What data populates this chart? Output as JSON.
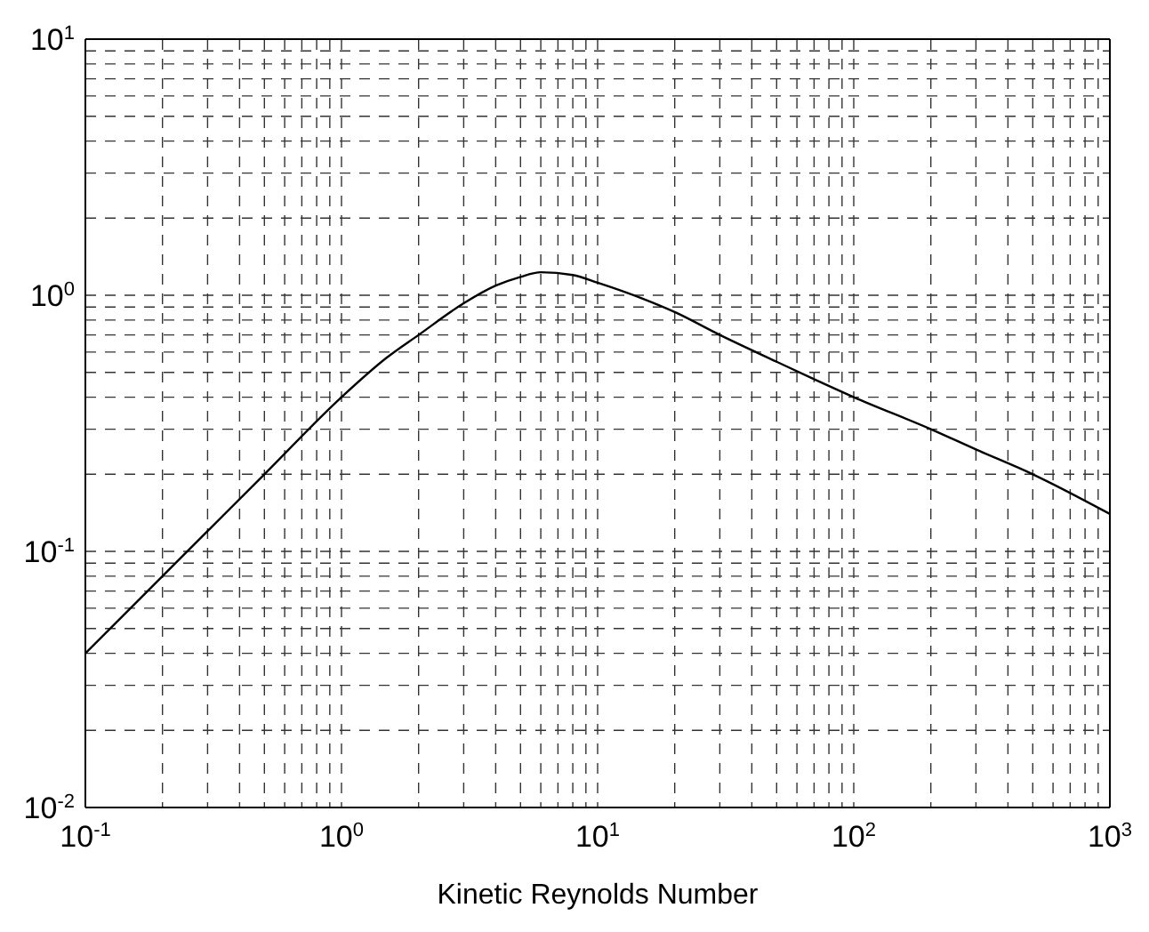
{
  "chart_data": {
    "type": "line",
    "xlabel": "Kinetic Reynolds Number",
    "log": "xy",
    "grid": true,
    "x": [
      0.1,
      0.2,
      0.3,
      0.5,
      1,
      1.5,
      2,
      3,
      4,
      5,
      6,
      8,
      10,
      15,
      20,
      30,
      50,
      70,
      100,
      200,
      300,
      500,
      1000
    ],
    "series": [
      {
        "color": "#000000",
        "values": [
          0.04,
          0.08,
          0.12,
          0.2,
          0.4,
          0.57,
          0.7,
          0.93,
          1.09,
          1.18,
          1.23,
          1.2,
          1.12,
          0.97,
          0.86,
          0.7,
          0.55,
          0.47,
          0.4,
          0.3,
          0.25,
          0.2,
          0.14
        ]
      }
    ],
    "xlim": [
      0.1,
      1000
    ],
    "ylim": [
      0.01,
      10
    ],
    "xticks": [
      {
        "value": 0.1,
        "label": "10$^{-1}$"
      },
      {
        "value": 0.2,
        "label": null
      },
      {
        "value": 0.3,
        "label": null
      },
      {
        "value": 0.4,
        "label": null
      },
      {
        "value": 0.5,
        "label": null
      },
      {
        "value": 0.6,
        "label": null
      },
      {
        "value": 0.7,
        "label": null
      },
      {
        "value": 0.8,
        "label": null
      },
      {
        "value": 0.9,
        "label": null
      },
      {
        "value": 1,
        "label": "10$^{0}$"
      },
      {
        "value": 2,
        "label": null
      },
      {
        "value": 3,
        "label": null
      },
      {
        "value": 4,
        "label": null
      },
      {
        "value": 5,
        "label": null
      },
      {
        "value": 6,
        "label": null
      },
      {
        "value": 7,
        "label": null
      },
      {
        "value": 8,
        "label": null
      },
      {
        "value": 9,
        "label": null
      },
      {
        "value": 10,
        "label": "10$^{1}$"
      },
      {
        "value": 20,
        "label": null
      },
      {
        "value": 30,
        "label": null
      },
      {
        "value": 40,
        "label": null
      },
      {
        "value": 50,
        "label": null
      },
      {
        "value": 60,
        "label": null
      },
      {
        "value": 70,
        "label": null
      },
      {
        "value": 80,
        "label": null
      },
      {
        "value": 90,
        "label": null
      },
      {
        "value": 100,
        "label": "10$^{2}$"
      },
      {
        "value": 200,
        "label": null
      },
      {
        "value": 300,
        "label": null
      },
      {
        "value": 400,
        "label": null
      },
      {
        "value": 500,
        "label": null
      },
      {
        "value": 600,
        "label": null
      },
      {
        "value": 700,
        "label": null
      },
      {
        "value": 800,
        "label": null
      },
      {
        "value": 900,
        "label": null
      },
      {
        "value": 1000,
        "label": "10$^{3}$"
      }
    ],
    "yticks": [
      {
        "value": 0.01,
        "label": "10$^{-2}$"
      },
      {
        "value": 0.02,
        "label": null
      },
      {
        "value": 0.03,
        "label": null
      },
      {
        "value": 0.04,
        "label": null
      },
      {
        "value": 0.05,
        "label": null
      },
      {
        "value": 0.06,
        "label": null
      },
      {
        "value": 0.07,
        "label": null
      },
      {
        "value": 0.08,
        "label": null
      },
      {
        "value": 0.09,
        "label": null
      },
      {
        "value": 0.1,
        "label": "10$^{-1}$"
      },
      {
        "value": 0.2,
        "label": null
      },
      {
        "value": 0.3,
        "label": null
      },
      {
        "value": 0.4,
        "label": null
      },
      {
        "value": 0.5,
        "label": null
      },
      {
        "value": 0.6,
        "label": null
      },
      {
        "value": 0.7,
        "label": null
      },
      {
        "value": 0.8,
        "label": null
      },
      {
        "value": 0.9,
        "label": null
      },
      {
        "value": 1,
        "label": "10$^{0}$"
      },
      {
        "value": 2,
        "label": null
      },
      {
        "value": 3,
        "label": null
      },
      {
        "value": 4,
        "label": null
      },
      {
        "value": 5,
        "label": null
      },
      {
        "value": 6,
        "label": null
      },
      {
        "value": 7,
        "label": null
      },
      {
        "value": 8,
        "label": null
      },
      {
        "value": 9,
        "label": null
      },
      {
        "value": 10,
        "label": "10$^{1}$"
      }
    ]
  }
}
